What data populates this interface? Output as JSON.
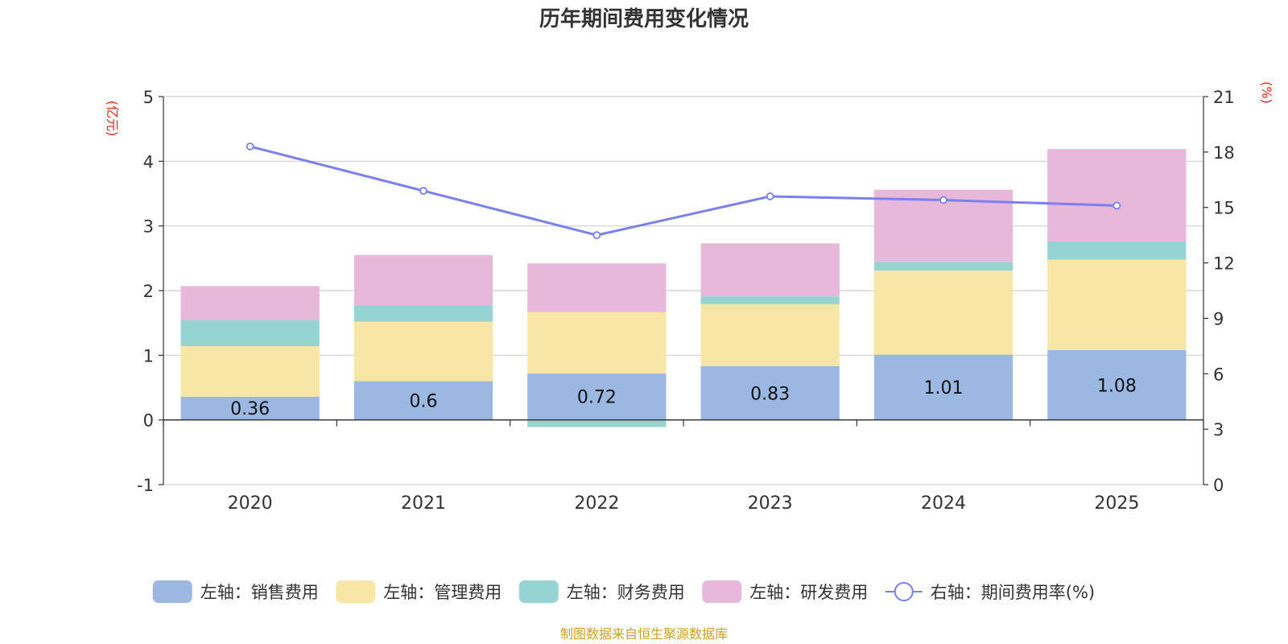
{
  "chart_data": {
    "type": "bar",
    "title": "历年期间费用变化情况",
    "categories": [
      "2020",
      "2021",
      "2022",
      "2023",
      "2024",
      "2025"
    ],
    "y_left": {
      "unit": "(亿元)",
      "min": -1,
      "max": 5,
      "ticks": [
        "5",
        "4",
        "3",
        "2",
        "1",
        "0",
        "-1"
      ]
    },
    "y_right": {
      "unit": "(%)",
      "min": 0,
      "max": 21,
      "ticks": [
        "21",
        "18",
        "15",
        "12",
        "9",
        "6",
        "3",
        "0"
      ]
    },
    "series": [
      {
        "name": "左轴：销售费用",
        "type": "bar",
        "axis": "left",
        "color": "#9bb8e3",
        "values": [
          0.36,
          0.6,
          0.72,
          0.83,
          1.01,
          1.08
        ],
        "labels": [
          "0.36",
          "0.6",
          "0.72",
          "0.83",
          "1.01",
          "1.08"
        ]
      },
      {
        "name": "左轴：管理费用",
        "type": "bar",
        "axis": "left",
        "color": "#f8e6a6",
        "values": [
          0.78,
          0.92,
          0.95,
          0.96,
          1.3,
          1.4
        ]
      },
      {
        "name": "左轴：财务费用",
        "type": "bar",
        "axis": "left",
        "color": "#96d4d4",
        "values": [
          0.4,
          0.25,
          -0.11,
          0.12,
          0.13,
          0.28
        ]
      },
      {
        "name": "左轴：研发费用",
        "type": "bar",
        "axis": "left",
        "color": "#e7b8d9",
        "values": [
          0.53,
          0.78,
          0.75,
          0.82,
          1.12,
          1.43
        ]
      },
      {
        "name": "右轴：期间费用率(%)",
        "type": "line",
        "axis": "right",
        "color": "#7b7ff0",
        "values": [
          18.3,
          15.9,
          13.5,
          15.6,
          15.4,
          15.1
        ]
      }
    ],
    "legend_position": "bottom",
    "grid": true
  },
  "source": "制图数据来自恒生聚源数据库"
}
